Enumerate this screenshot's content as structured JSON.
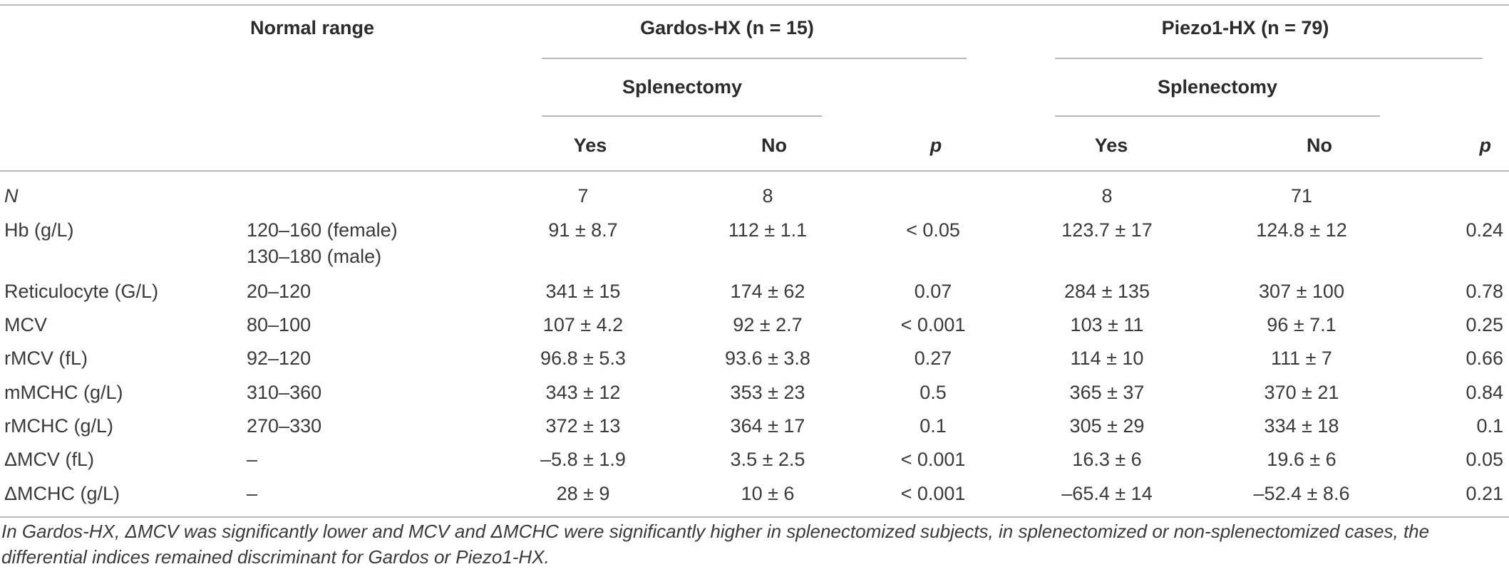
{
  "table": {
    "headers": {
      "normal_range": "Normal range",
      "gardos_group": "Gardos-HX",
      "gardos_n": "(n = 15)",
      "piezo_group": "Piezo1-HX",
      "piezo_n": "(n = 79)",
      "splenectomy": "Splenectomy",
      "yes": "Yes",
      "no": "No",
      "p": "p"
    },
    "rows": [
      {
        "label": "N",
        "range1": "",
        "range2": "",
        "g_yes": "7",
        "g_no": "8",
        "g_p": "",
        "p_yes": "8",
        "p_no": "71",
        "p_p": ""
      },
      {
        "label": "Hb (g/L)",
        "range1": "120–160 (female)",
        "range2": "130–180 (male)",
        "g_yes": "91 ± 8.7",
        "g_no": "112 ± 1.1",
        "g_p": "< 0.05",
        "p_yes": "123.7 ± 17",
        "p_no": "124.8 ± 12",
        "p_p": "0.24"
      },
      {
        "label": "Reticulocyte (G/L)",
        "range1": "20–120",
        "range2": "",
        "g_yes": "341 ± 15",
        "g_no": "174 ± 62",
        "g_p": "0.07",
        "p_yes": "284 ± 135",
        "p_no": "307 ± 100",
        "p_p": "0.78"
      },
      {
        "label": "MCV",
        "range1": "80–100",
        "range2": "",
        "g_yes": "107 ± 4.2",
        "g_no": "92 ± 2.7",
        "g_p": "< 0.001",
        "p_yes": "103 ± 11",
        "p_no": "96 ± 7.1",
        "p_p": "0.25"
      },
      {
        "label": "rMCV (fL)",
        "range1": "92–120",
        "range2": "",
        "g_yes": "96.8 ± 5.3",
        "g_no": "93.6 ± 3.8",
        "g_p": "0.27",
        "p_yes": "114 ± 10",
        "p_no": "111 ± 7",
        "p_p": "0.66"
      },
      {
        "label": "mMCHC (g/L)",
        "range1": "310–360",
        "range2": "",
        "g_yes": "343 ± 12",
        "g_no": "353 ± 23",
        "g_p": "0.5",
        "p_yes": "365 ± 37",
        "p_no": "370 ± 21",
        "p_p": "0.84"
      },
      {
        "label": "rMCHC (g/L)",
        "range1": "270–330",
        "range2": "",
        "g_yes": "372 ± 13",
        "g_no": "364 ± 17",
        "g_p": "0.1",
        "p_yes": "305 ± 29",
        "p_no": "334 ± 18",
        "p_p": "0.1"
      },
      {
        "label": "ΔMCV (fL)",
        "range1": "–",
        "range2": "",
        "g_yes": "–5.8 ± 1.9",
        "g_no": "3.5 ± 2.5",
        "g_p": "< 0.001",
        "p_yes": "16.3 ± 6",
        "p_no": "19.6 ± 6",
        "p_p": "0.05"
      },
      {
        "label": "ΔMCHC (g/L)",
        "range1": "–",
        "range2": "",
        "g_yes": "28 ± 9",
        "g_no": "10 ± 6",
        "g_p": "< 0.001",
        "p_yes": "–65.4 ± 14",
        "p_no": "–52.4 ± 8.6",
        "p_p": "0.21"
      }
    ],
    "caption": "In Gardos-HX, ΔMCV was significantly lower and MCV and ΔMCHC were significantly higher in splenectomized subjects, in splenectomized or non-splenectomized cases, the differential indices remained discriminant for Gardos or Piezo1-HX."
  }
}
